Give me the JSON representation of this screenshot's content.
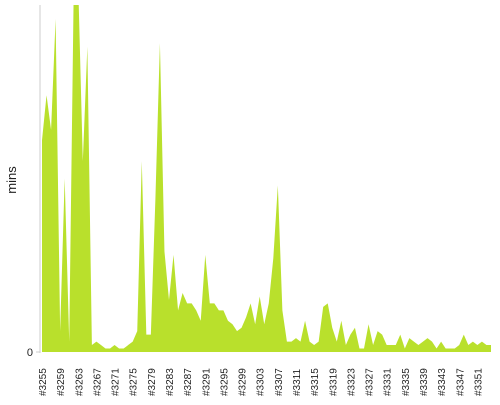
{
  "chart_data": {
    "type": "area",
    "y_label": "mins",
    "color": "#b9e02c",
    "categories": [
      "#3255",
      null,
      null,
      null,
      "#3259",
      null,
      null,
      null,
      "#3263",
      null,
      null,
      null,
      "#3267",
      null,
      null,
      null,
      "#3271",
      null,
      null,
      null,
      "#3275",
      null,
      null,
      null,
      "#3279",
      null,
      null,
      null,
      "#3283",
      null,
      null,
      null,
      "#3287",
      null,
      null,
      null,
      "#3291",
      null,
      null,
      null,
      "#3295",
      null,
      null,
      null,
      "#3299",
      null,
      null,
      null,
      "#3303",
      null,
      null,
      null,
      "#3307",
      null,
      null,
      null,
      "#3311",
      null,
      null,
      null,
      "#3315",
      null,
      null,
      null,
      "#3319",
      null,
      null,
      null,
      "#3323",
      null,
      null,
      null,
      "#3327",
      null,
      null,
      null,
      "#3331",
      null,
      null,
      null,
      "#3335",
      null,
      null,
      null,
      "#3339",
      null,
      null,
      null,
      "#3343",
      null,
      null,
      null,
      "#3347",
      null,
      null,
      null,
      "#3351",
      null,
      null,
      null
    ],
    "values": [
      61,
      74,
      64,
      96,
      6,
      50,
      3,
      105,
      105,
      55,
      88,
      2,
      3,
      2,
      1,
      1,
      2,
      1,
      1,
      2,
      3,
      6,
      55,
      5,
      5,
      44,
      89,
      29,
      15,
      28,
      12,
      17,
      14,
      14,
      12,
      9,
      28,
      14,
      14,
      12,
      12,
      9,
      8,
      6,
      7,
      10,
      14,
      8,
      16,
      8,
      14,
      27,
      48,
      12,
      3,
      3,
      4,
      3,
      9,
      3,
      2,
      3,
      13,
      14,
      7,
      3,
      9,
      2,
      5,
      7,
      1,
      1,
      8,
      2,
      6,
      5,
      2,
      2,
      2,
      5,
      1,
      4,
      3,
      2,
      3,
      4,
      3,
      1,
      3,
      1,
      1,
      1,
      2,
      5,
      2,
      3,
      2,
      3,
      2,
      2
    ],
    "ylim": [
      0,
      100
    ],
    "yticks": [
      0
    ]
  }
}
